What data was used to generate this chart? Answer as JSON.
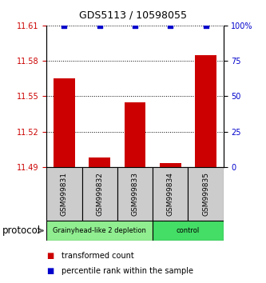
{
  "title": "GDS5113 / 10598055",
  "samples": [
    "GSM999831",
    "GSM999832",
    "GSM999833",
    "GSM999834",
    "GSM999835"
  ],
  "red_values": [
    11.565,
    11.498,
    11.545,
    11.493,
    11.585
  ],
  "blue_values": [
    100,
    100,
    100,
    100,
    100
  ],
  "ylim_left": [
    11.49,
    11.61
  ],
  "ylim_right": [
    0,
    100
  ],
  "yticks_left": [
    11.49,
    11.52,
    11.55,
    11.58,
    11.61
  ],
  "yticks_right": [
    0,
    25,
    50,
    75,
    100
  ],
  "groups": [
    {
      "label": "Grainyhead-like 2 depletion",
      "indices": [
        0,
        1,
        2
      ],
      "color": "#90ee90"
    },
    {
      "label": "control",
      "indices": [
        3,
        4
      ],
      "color": "#44dd66"
    }
  ],
  "group_label": "protocol",
  "bar_color": "#cc0000",
  "marker_color": "#0000cc",
  "bar_width": 0.6,
  "legend_red": "transformed count",
  "legend_blue": "percentile rank within the sample",
  "left_tick_color": "#cc0000",
  "right_tick_color": "#0000cc",
  "sample_box_color": "#cccccc",
  "group1_color": "#90ee90",
  "group2_color": "#44dd66"
}
